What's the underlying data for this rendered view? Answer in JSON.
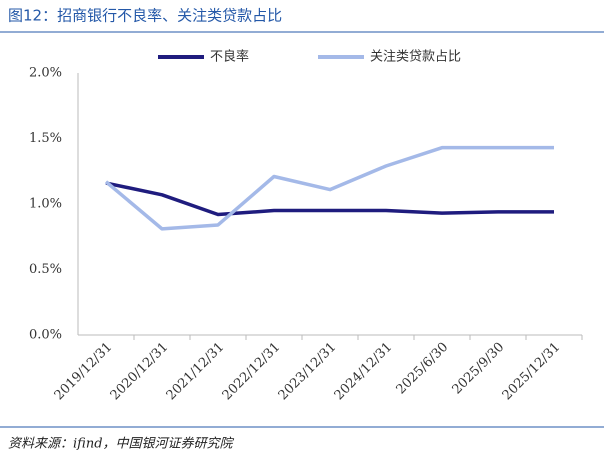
{
  "chart_data": {
    "type": "line",
    "title": "图12：招商银行不良率、关注类贷款占比",
    "categories": [
      "2019/12/31",
      "2020/12/31",
      "2021/12/31",
      "2022/12/31",
      "2023/12/31",
      "2024/12/31",
      "2025/6/30",
      "2025/9/30",
      "2025/12/31"
    ],
    "series": [
      {
        "name": "不良率",
        "color": "#1f1c7e",
        "values": [
          1.16,
          1.07,
          0.92,
          0.95,
          0.95,
          0.95,
          0.93,
          0.94,
          0.94
        ]
      },
      {
        "name": "关注类贷款占比",
        "color": "#a4b9e8",
        "values": [
          1.17,
          0.81,
          0.84,
          1.21,
          1.11,
          1.29,
          1.43,
          1.43,
          1.43
        ]
      }
    ],
    "ylim": [
      0,
      2
    ],
    "yticks": [
      {
        "value": 0,
        "label": "0.0%"
      },
      {
        "value": 0.5,
        "label": "0.5%"
      },
      {
        "value": 1,
        "label": "1.0%"
      },
      {
        "value": 1.5,
        "label": "1.5%"
      },
      {
        "value": 2,
        "label": "2.0%"
      }
    ],
    "legend": "top",
    "source": "资料来源：ifind，中国银河证券研究院"
  }
}
